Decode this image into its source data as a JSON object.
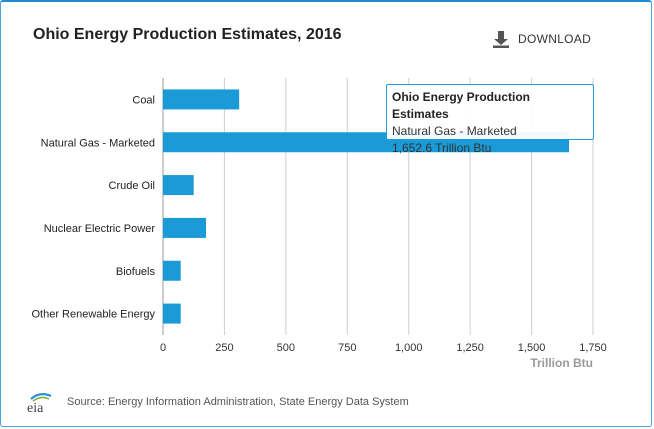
{
  "header": {
    "title": "Ohio Energy Production Estimates, 2016",
    "download_label": "DOWNLOAD"
  },
  "tooltip": {
    "title": "Ohio Energy Production Estimates",
    "category": "Natural Gas - Marketed",
    "value": "1,652.6 Trillion Btu"
  },
  "footer": {
    "logo_text": "eia",
    "source": "Source: Energy Information Administration, State Energy Data System"
  },
  "colors": {
    "bar": "#1a9ad6",
    "grid": "#cfcfcf",
    "accent": "#2b8fd6"
  },
  "chart_data": {
    "type": "bar",
    "orientation": "horizontal",
    "title": "Ohio Energy Production Estimates, 2016",
    "categories": [
      "Coal",
      "Natural Gas - Marketed",
      "Crude Oil",
      "Nuclear Electric Power",
      "Biofuels",
      "Other Renewable Energy"
    ],
    "values": [
      310,
      1652.6,
      125,
      175,
      72,
      72
    ],
    "xlabel": "Trillion Btu",
    "ylabel": "",
    "xlim": [
      0,
      1750
    ],
    "ticks": [
      0,
      250,
      500,
      750,
      1000,
      1250,
      1500,
      1750
    ],
    "tick_labels": [
      "0",
      "250",
      "500",
      "750",
      "1,000",
      "1,250",
      "1,500",
      "1,750"
    ],
    "grid": true,
    "legend": "none"
  }
}
